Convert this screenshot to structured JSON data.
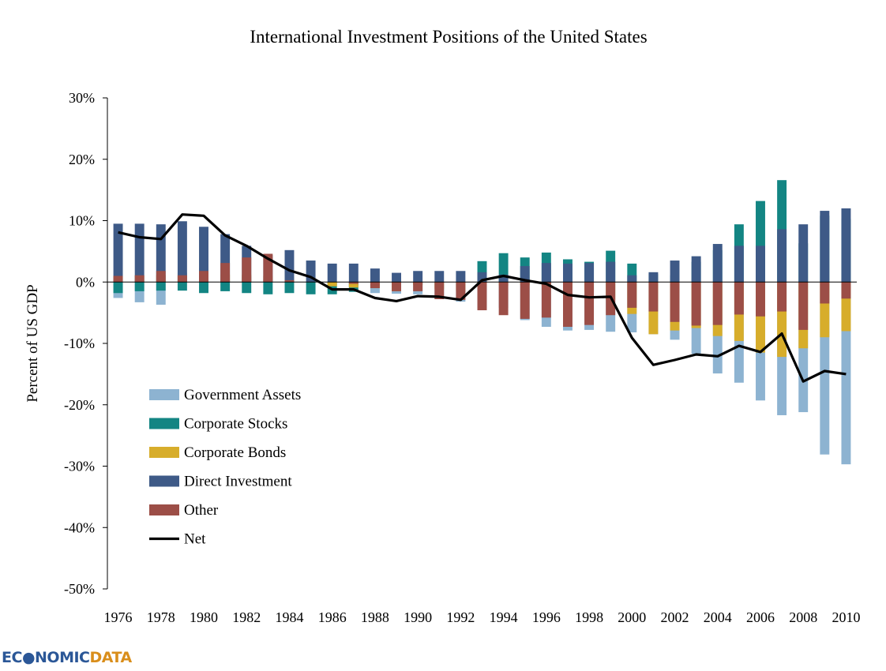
{
  "chart_data": {
    "type": "bar",
    "stacked": true,
    "title": "International Investment Positions of the United States",
    "ylabel": "Percent of US GDP",
    "xlabel": "",
    "ylim": [
      -50,
      30
    ],
    "yticks": [
      30,
      20,
      10,
      0,
      -10,
      -20,
      -30,
      -40,
      -50
    ],
    "ytick_labels": [
      "30%",
      "20%",
      "10%",
      "0%",
      "-10%",
      "-20%",
      "-30%",
      "-40%",
      "-50%"
    ],
    "xtick_labels": [
      "1976",
      "1978",
      "1980",
      "1982",
      "1984",
      "1986",
      "1988",
      "1990",
      "1992",
      "1994",
      "1996",
      "1998",
      "2000",
      "2002",
      "2004",
      "2006",
      "2008",
      "2010"
    ],
    "legend_position": "lower-left",
    "grid": false,
    "categories": [
      1976,
      1977,
      1978,
      1979,
      1980,
      1981,
      1982,
      1983,
      1984,
      1985,
      1986,
      1987,
      1988,
      1989,
      1990,
      1991,
      1992,
      1993,
      1994,
      1995,
      1996,
      1997,
      1998,
      1999,
      2000,
      2001,
      2002,
      2003,
      2004,
      2005,
      2006,
      2007,
      2008,
      2009,
      2010
    ],
    "series": [
      {
        "name": "Government Assets",
        "color": "#8db3d1",
        "values": [
          [
            0,
            -2.6
          ],
          [
            0,
            -3.3
          ],
          [
            0,
            -3.7
          ],
          [
            0,
            1.5
          ],
          [
            0,
            2.3
          ],
          [
            0,
            0
          ],
          [
            0,
            0.9
          ],
          [
            0,
            0.5
          ],
          [
            0,
            -0.3
          ],
          [
            0,
            0
          ],
          [
            0,
            -0.5
          ],
          [
            0,
            -0.7
          ],
          [
            0,
            -1.8
          ],
          [
            0,
            -1.9
          ],
          [
            0,
            -2.0
          ],
          [
            0,
            -2.7
          ],
          [
            0,
            -3.2
          ],
          [
            0,
            -4.3
          ],
          [
            0,
            -4.2
          ],
          [
            0,
            -6.2
          ],
          [
            0,
            -7.3
          ],
          [
            0,
            -7.9
          ],
          [
            0,
            -7.8
          ],
          [
            0,
            -8.1
          ],
          [
            0,
            -8.2
          ],
          [
            0,
            -8.5
          ],
          [
            0,
            -9.4
          ],
          [
            0,
            -11.7
          ],
          [
            0,
            -14.9
          ],
          [
            0,
            -16.4
          ],
          [
            0,
            -19.3
          ],
          [
            0,
            -21.7
          ],
          [
            0,
            -21.2
          ],
          [
            0,
            -28.1
          ],
          [
            0,
            -29.7
          ]
        ]
      },
      {
        "name": "Corporate Stocks",
        "color": "#138583",
        "values": [
          [
            0,
            -1.8
          ],
          [
            0,
            -1.5
          ],
          [
            0,
            -1.4
          ],
          [
            0,
            -1.4
          ],
          [
            0,
            -1.8
          ],
          [
            0,
            -1.5
          ],
          [
            0,
            -1.8
          ],
          [
            0,
            -2.0
          ],
          [
            0,
            -1.8
          ],
          [
            0,
            -2.0
          ],
          [
            0,
            -2.0
          ],
          [
            0,
            -1.6
          ],
          [
            0,
            -0.8
          ],
          [
            0,
            -0.8
          ],
          [
            0,
            -0.4
          ],
          [
            0,
            0
          ],
          [
            0,
            0
          ],
          [
            0,
            3.4
          ],
          [
            0,
            4.7
          ],
          [
            0,
            4.0
          ],
          [
            0,
            4.8
          ],
          [
            0,
            3.7
          ],
          [
            0,
            3.3
          ],
          [
            0,
            5.1
          ],
          [
            0,
            3.0
          ],
          [
            0,
            1.3
          ],
          [
            0,
            1.1
          ],
          [
            0,
            3.3
          ],
          [
            0,
            5.2
          ],
          [
            0,
            9.4
          ],
          [
            0,
            13.2
          ],
          [
            0,
            16.6
          ],
          [
            0,
            6.3
          ],
          [
            0,
            10.8
          ],
          [
            0,
            10.3
          ]
        ]
      },
      {
        "name": "Corporate Bonds",
        "color": "#d7ad2b",
        "values": [
          [
            0,
            1.0
          ],
          [
            0,
            1.1
          ],
          [
            0,
            1.1
          ],
          [
            0,
            1.1
          ],
          [
            0,
            1.1
          ],
          [
            0,
            1.2
          ],
          [
            0,
            1.2
          ],
          [
            0,
            1.0
          ],
          [
            0,
            0.8
          ],
          [
            0,
            0
          ],
          [
            0,
            -0.7
          ],
          [
            0,
            -0.9
          ],
          [
            0,
            -1.0
          ],
          [
            0,
            -1.5
          ],
          [
            0,
            -0.5
          ],
          [
            0,
            -1.1
          ],
          [
            0,
            -1.5
          ],
          [
            0,
            -0.6
          ],
          [
            0,
            -0.6
          ],
          [
            0,
            -0.5
          ],
          [
            0,
            -0.6
          ],
          [
            0,
            -0.9
          ],
          [
            0,
            -1.6
          ],
          [
            0,
            -2.9
          ],
          [
            0,
            -5.2
          ],
          [
            0,
            -8.5
          ],
          [
            0,
            -7.9
          ],
          [
            0,
            -7.5
          ],
          [
            0,
            -8.8
          ],
          [
            0,
            -9.6
          ],
          [
            0,
            -11.5
          ],
          [
            0,
            -12.2
          ],
          [
            0,
            -10.8
          ],
          [
            0,
            -9.0
          ],
          [
            0,
            -8.0
          ]
        ]
      },
      {
        "name": "Direct Investment",
        "color": "#3e5a87",
        "values": [
          [
            0,
            9.5
          ],
          [
            0,
            9.5
          ],
          [
            0,
            9.4
          ],
          [
            0,
            9.9
          ],
          [
            0,
            9.0
          ],
          [
            0,
            7.8
          ],
          [
            0,
            5.9
          ],
          [
            0,
            4.4
          ],
          [
            0,
            5.2
          ],
          [
            0,
            3.5
          ],
          [
            0,
            3.0
          ],
          [
            0,
            3.0
          ],
          [
            0,
            2.2
          ],
          [
            0,
            1.5
          ],
          [
            0,
            1.8
          ],
          [
            0,
            1.8
          ],
          [
            0,
            1.8
          ],
          [
            0,
            1.6
          ],
          [
            0,
            1.2
          ],
          [
            0,
            2.6
          ],
          [
            0,
            3.1
          ],
          [
            0,
            3.0
          ],
          [
            0,
            3.1
          ],
          [
            0,
            3.3
          ],
          [
            0,
            1.1
          ],
          [
            0,
            1.6
          ],
          [
            0,
            3.5
          ],
          [
            0,
            4.2
          ],
          [
            0,
            6.2
          ],
          [
            0,
            5.9
          ],
          [
            0,
            5.9
          ],
          [
            0,
            8.6
          ],
          [
            0,
            9.4
          ],
          [
            0,
            11.6
          ],
          [
            0,
            12.0
          ]
        ]
      },
      {
        "name": "Other",
        "color": "#9c4e47",
        "values": [
          [
            0,
            1.0
          ],
          [
            0,
            1.1
          ],
          [
            0,
            1.8
          ],
          [
            0,
            1.1
          ],
          [
            0,
            1.8
          ],
          [
            0,
            3.1
          ],
          [
            0,
            4.0
          ],
          [
            0,
            4.6
          ],
          [
            0,
            0.3
          ],
          [
            0,
            0
          ],
          [
            0,
            0
          ],
          [
            0,
            -0.3
          ],
          [
            0,
            -1.0
          ],
          [
            0,
            -1.5
          ],
          [
            0,
            -1.5
          ],
          [
            0,
            -2.8
          ],
          [
            0,
            -2.9
          ],
          [
            0,
            -4.6
          ],
          [
            0,
            -5.4
          ],
          [
            0,
            -6.0
          ],
          [
            0,
            -5.8
          ],
          [
            0,
            -7.3
          ],
          [
            0,
            -7.0
          ],
          [
            0,
            -5.4
          ],
          [
            0,
            -4.2
          ],
          [
            0,
            -4.8
          ],
          [
            0,
            -6.5
          ],
          [
            0,
            -7.1
          ],
          [
            0,
            -7.0
          ],
          [
            0,
            -5.3
          ],
          [
            0,
            -5.6
          ],
          [
            0,
            -4.8
          ],
          [
            0,
            -7.8
          ],
          [
            0,
            -3.5
          ],
          [
            0,
            -2.7
          ]
        ]
      },
      {
        "name": "Net",
        "color": "#000000",
        "type": "line",
        "values": [
          8.1,
          7.3,
          7.0,
          11.0,
          10.8,
          7.6,
          5.9,
          3.8,
          1.9,
          0.8,
          -1.2,
          -1.2,
          -2.6,
          -3.1,
          -2.3,
          -2.4,
          -2.9,
          0.3,
          1.0,
          0.3,
          -0.3,
          -2.1,
          -2.5,
          -2.4,
          -9.1,
          -13.5,
          -12.7,
          -11.8,
          -12.1,
          -10.4,
          -11.4,
          -8.4,
          -16.2,
          -14.5,
          -15.0
        ]
      }
    ]
  },
  "logo": {
    "part1": "EC",
    "part2": "NOMIC",
    "part3": "DATA"
  }
}
